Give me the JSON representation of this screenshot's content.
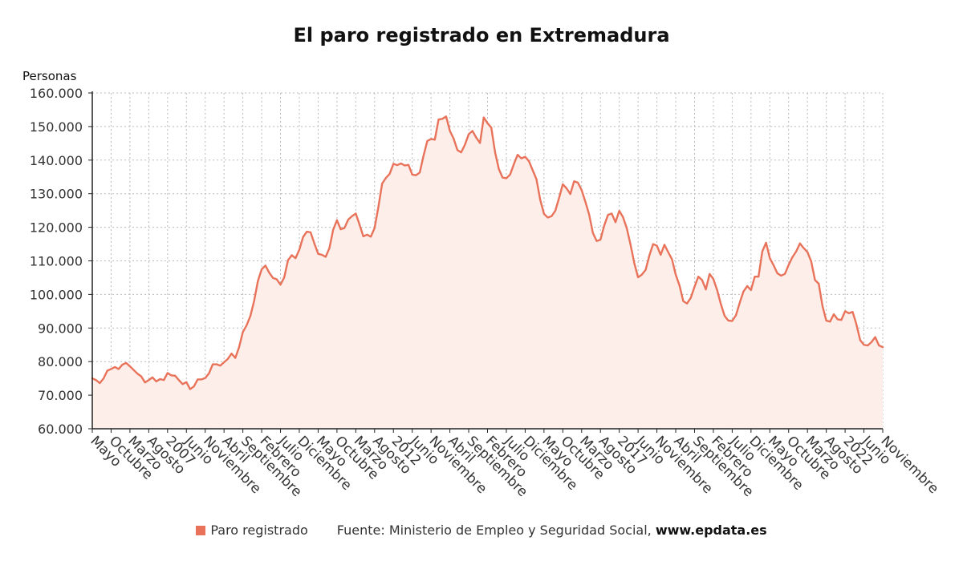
{
  "title": "El paro registrado en Extremadura",
  "unit_label": "Personas",
  "legend": {
    "label": "Paro registrado",
    "color": "#E8735A"
  },
  "source": {
    "text": "Fuente: Ministerio de Empleo y Seguridad Social,",
    "site": "www.epdata.es"
  },
  "colors": {
    "line": "#E8735A",
    "fill": "#FDEEEA",
    "grid": "#BBBBBB",
    "axis": "#222222"
  },
  "chart_data": {
    "type": "area",
    "x_range": [
      "2005-05",
      "2022-11"
    ],
    "ylim": [
      60000,
      160000
    ],
    "y_ticks": [
      {
        "value": 60000,
        "label": "60.000"
      },
      {
        "value": 70000,
        "label": "70.000"
      },
      {
        "value": 80000,
        "label": "80.000"
      },
      {
        "value": 90000,
        "label": "90.000"
      },
      {
        "value": 100000,
        "label": "100.000"
      },
      {
        "value": 110000,
        "label": "110.000"
      },
      {
        "value": 120000,
        "label": "120.000"
      },
      {
        "value": 130000,
        "label": "130.000"
      },
      {
        "value": 140000,
        "label": "140.000"
      },
      {
        "value": 150000,
        "label": "150.000"
      },
      {
        "value": 160000,
        "label": "160.000"
      }
    ],
    "x_ticks": [
      {
        "date": "2005-05",
        "label": "Mayo"
      },
      {
        "date": "2005-10",
        "label": "Octubre"
      },
      {
        "date": "2006-03",
        "label": "Marzo"
      },
      {
        "date": "2006-08",
        "label": "Agosto"
      },
      {
        "date": "2007-01",
        "label": "2007"
      },
      {
        "date": "2007-06",
        "label": "Junio"
      },
      {
        "date": "2007-11",
        "label": "Noviembre"
      },
      {
        "date": "2008-04",
        "label": "Abril"
      },
      {
        "date": "2008-09",
        "label": "Septiembre"
      },
      {
        "date": "2009-02",
        "label": "Febrero"
      },
      {
        "date": "2009-07",
        "label": "Julio"
      },
      {
        "date": "2009-12",
        "label": "Diciembre"
      },
      {
        "date": "2010-05",
        "label": "Mayo"
      },
      {
        "date": "2010-10",
        "label": "Octubre"
      },
      {
        "date": "2011-03",
        "label": "Marzo"
      },
      {
        "date": "2011-08",
        "label": "Agosto"
      },
      {
        "date": "2012-01",
        "label": "2012"
      },
      {
        "date": "2012-06",
        "label": "Junio"
      },
      {
        "date": "2012-11",
        "label": "Noviembre"
      },
      {
        "date": "2013-04",
        "label": "Abril"
      },
      {
        "date": "2013-09",
        "label": "Septiembre"
      },
      {
        "date": "2014-02",
        "label": "Febrero"
      },
      {
        "date": "2014-07",
        "label": "Julio"
      },
      {
        "date": "2014-12",
        "label": "Diciembre"
      },
      {
        "date": "2015-05",
        "label": "Mayo"
      },
      {
        "date": "2015-10",
        "label": "Octubre"
      },
      {
        "date": "2016-03",
        "label": "Marzo"
      },
      {
        "date": "2016-08",
        "label": "Agosto"
      },
      {
        "date": "2017-01",
        "label": "2017"
      },
      {
        "date": "2017-06",
        "label": "Junio"
      },
      {
        "date": "2017-11",
        "label": "Noviembre"
      },
      {
        "date": "2018-04",
        "label": "Abril"
      },
      {
        "date": "2018-09",
        "label": "Septiembre"
      },
      {
        "date": "2019-02",
        "label": "Febrero"
      },
      {
        "date": "2019-07",
        "label": "Julio"
      },
      {
        "date": "2019-12",
        "label": "Diciembre"
      },
      {
        "date": "2020-05",
        "label": "Mayo"
      },
      {
        "date": "2020-10",
        "label": "Octubre"
      },
      {
        "date": "2021-03",
        "label": "Marzo"
      },
      {
        "date": "2021-08",
        "label": "Agosto"
      },
      {
        "date": "2022-01",
        "label": "2022"
      },
      {
        "date": "2022-06",
        "label": "Junio"
      },
      {
        "date": "2022-11",
        "label": "Noviembre"
      }
    ],
    "series": [
      {
        "name": "Paro registrado",
        "start": "2005-05",
        "frequency": "monthly",
        "values": [
          75000,
          74500,
          73600,
          75000,
          77300,
          77800,
          78400,
          77800,
          79100,
          79600,
          78600,
          77500,
          76400,
          75600,
          73800,
          74500,
          75300,
          74100,
          74800,
          74500,
          76600,
          75900,
          75800,
          74500,
          73300,
          73900,
          71800,
          72600,
          74700,
          74700,
          75100,
          76500,
          79200,
          79200,
          78800,
          79800,
          80800,
          82400,
          81100,
          84300,
          88800,
          90800,
          93600,
          98100,
          104000,
          107500,
          108600,
          106500,
          104900,
          104500,
          102900,
          105100,
          110200,
          111700,
          110800,
          113300,
          117100,
          118700,
          118500,
          115200,
          112100,
          111800,
          111200,
          113800,
          119300,
          122100,
          119400,
          119800,
          122300,
          123300,
          124100,
          120800,
          117300,
          117800,
          117200,
          119800,
          126000,
          133000,
          134700,
          135900,
          138900,
          138500,
          139000,
          138400,
          138600,
          135700,
          135500,
          136300,
          141300,
          145700,
          146300,
          146100,
          152100,
          152300,
          153000,
          148700,
          146400,
          143000,
          142300,
          144600,
          147700,
          148700,
          146700,
          145100,
          152700,
          151000,
          149700,
          142400,
          137400,
          134800,
          134600,
          135700,
          138800,
          141600,
          140500,
          141000,
          139700,
          137000,
          134300,
          128200,
          124000,
          122900,
          123300,
          124900,
          128700,
          132800,
          131600,
          129900,
          133700,
          133300,
          131100,
          127600,
          123800,
          118300,
          115900,
          116300,
          120500,
          123700,
          124100,
          121500,
          124900,
          123000,
          119700,
          114800,
          109300,
          105100,
          105900,
          107300,
          111600,
          115000,
          114500,
          111800,
          114800,
          112600,
          110500,
          105900,
          102700,
          98000,
          97300,
          99000,
          102300,
          105300,
          104300,
          101500,
          106100,
          104600,
          101300,
          97100,
          93600,
          92200,
          92100,
          93800,
          97500,
          100900,
          102500,
          101300,
          105300,
          105300,
          112800,
          115400,
          110800,
          108700,
          106300,
          105600,
          106100,
          108800,
          111100,
          112800,
          115200,
          113800,
          112600,
          109800,
          104300,
          103200,
          96500,
          92200,
          91900,
          94100,
          92600,
          92400,
          95000,
          94400,
          94800,
          91100,
          86400,
          85000,
          84800,
          85800,
          87300,
          84800,
          84300
        ]
      }
    ],
    "grid": true,
    "legend_position": "bottom"
  }
}
